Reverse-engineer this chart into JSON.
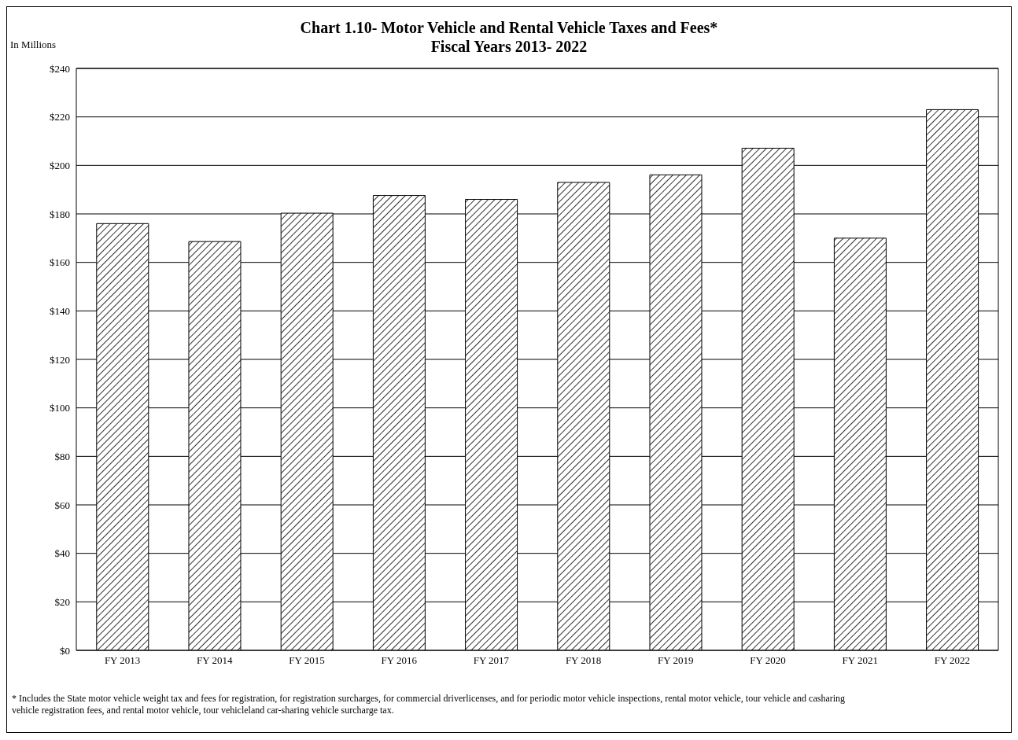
{
  "chart_data": {
    "type": "bar",
    "title": "Chart 1.10- Motor Vehicle and Rental Vehicle Taxes and Fees*",
    "subtitle": "Fiscal Years 2013- 2022",
    "ylabel": "In Millions",
    "categories": [
      "FY 2013",
      "FY 2014",
      "FY 2015",
      "FY 2016",
      "FY 2017",
      "FY 2018",
      "FY 2019",
      "FY 2020",
      "FY 2021",
      "FY 2022"
    ],
    "values": [
      176,
      168.6,
      180.3,
      187.6,
      186,
      193,
      196.1,
      207.1,
      170,
      223
    ],
    "color": "#000000",
    "ylim": [
      0,
      240
    ],
    "yticks": [
      {
        "value": 0,
        "label": "$0"
      },
      {
        "value": 20,
        "label": "$20"
      },
      {
        "value": 40,
        "label": "$40"
      },
      {
        "value": 60,
        "label": "$60"
      },
      {
        "value": 80,
        "label": "$80"
      },
      {
        "value": 100,
        "label": "$100"
      },
      {
        "value": 120,
        "label": "$120"
      },
      {
        "value": 140,
        "label": "$140"
      },
      {
        "value": 160,
        "label": "$160"
      },
      {
        "value": 180,
        "label": "$180"
      },
      {
        "value": 200,
        "label": "$200"
      },
      {
        "value": 220,
        "label": "$220"
      },
      {
        "value": 240,
        "label": "$240"
      }
    ],
    "grid": "y",
    "annotations": [
      "* Includes the State motor vehicle weight tax and fees for registration, for registration surcharges, for commercial driverlicenses, and for periodic motor vehicle inspections, rental motor vehicle, tour vehicle and casharing vehicle registration fees, and rental motor vehicle, tour vehicleland car-sharing vehicle surcharge tax."
    ]
  }
}
